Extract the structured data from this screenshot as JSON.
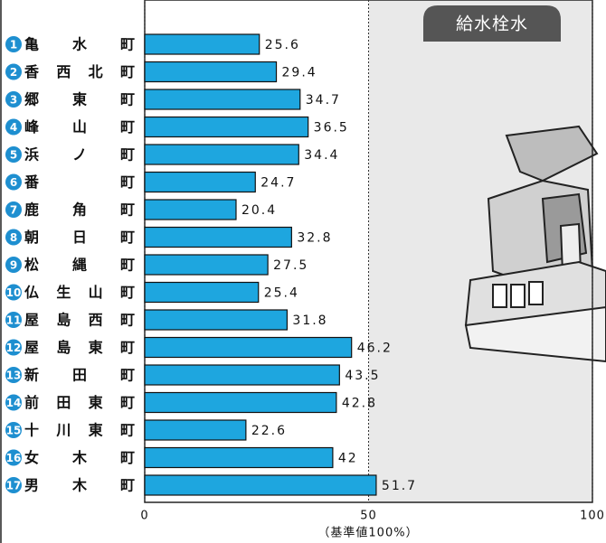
{
  "chart_data": {
    "type": "barh",
    "title": "給水栓水",
    "xlabel": "（基準値100%）",
    "category_numbers": [
      1,
      2,
      3,
      4,
      5,
      6,
      7,
      8,
      9,
      10,
      11,
      12,
      13,
      14,
      15,
      16,
      17
    ],
    "categories": [
      "亀水町",
      "香西北町",
      "郷東町",
      "峰山町",
      "浜ノ町",
      "番町",
      "鹿角町",
      "朝日町",
      "松縄町",
      "仏生山町",
      "屋島西町",
      "屋島東町",
      "新田町",
      "前田東町",
      "十川東町",
      "女木町",
      "男木町"
    ],
    "values": [
      25.6,
      29.4,
      34.7,
      36.5,
      34.4,
      24.7,
      20.4,
      32.8,
      27.5,
      25.4,
      31.8,
      46.2,
      43.5,
      42.8,
      22.6,
      42,
      51.7
    ],
    "color": "#1ea6df",
    "number_color": "#1e8fd0",
    "xlim": [
      0,
      100
    ],
    "xticks": [
      0,
      50,
      100
    ],
    "grid": true
  }
}
